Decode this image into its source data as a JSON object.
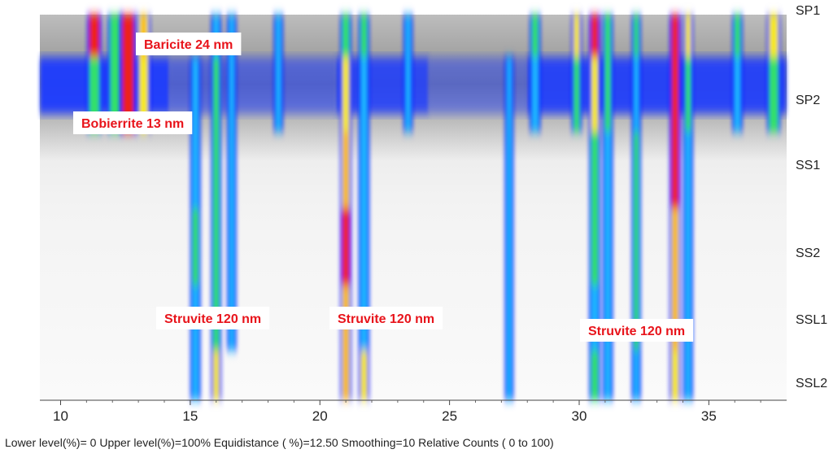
{
  "chart_data": {
    "type": "heatmap",
    "x_ticks": [
      10,
      15,
      20,
      25,
      30,
      35
    ],
    "xlim": [
      9.2,
      38
    ],
    "rows": [
      "SP1",
      "SP2",
      "SS1",
      "SS2",
      "SSL1",
      "SSL2"
    ],
    "annotations": [
      {
        "text": "Baricite 24 nm"
      },
      {
        "text": "Bobierrite 13 nm"
      },
      {
        "text": "Struvite 120 nm"
      },
      {
        "text": "Struvite 120 nm"
      },
      {
        "text": "Struvite 120 nm"
      }
    ],
    "footer": "Lower level(%)= 0  Upper level(%)=100%  Equidistance ( %)=12.50  Smoothing=10  Relative Counts ( 0 to 100)",
    "peaks": [
      {
        "x": 11.3,
        "w": 0.22,
        "rows": [
          0.9,
          0.5,
          0,
          0,
          0,
          0
        ]
      },
      {
        "x": 12.1,
        "w": 0.22,
        "rows": [
          0.6,
          0.6,
          0,
          0,
          0,
          0
        ]
      },
      {
        "x": 12.6,
        "w": 0.25,
        "rows": [
          1.0,
          1.0,
          0,
          0,
          0,
          0
        ]
      },
      {
        "x": 13.2,
        "w": 0.2,
        "rows": [
          0.8,
          0.7,
          0,
          0,
          0,
          0
        ]
      },
      {
        "x": 15.2,
        "w": 0.14,
        "rows": [
          0,
          0.3,
          0.3,
          0.5,
          0.45,
          0.45
        ]
      },
      {
        "x": 16.0,
        "w": 0.14,
        "rows": [
          0.3,
          0.55,
          0.6,
          0.65,
          0.65,
          0.7
        ]
      },
      {
        "x": 16.6,
        "w": 0.12,
        "rows": [
          0.3,
          0.35,
          0.3,
          0.4,
          0.35,
          0
        ]
      },
      {
        "x": 18.4,
        "w": 0.12,
        "rows": [
          0.4,
          0.3,
          0,
          0,
          0,
          0
        ]
      },
      {
        "x": 21.0,
        "w": 0.16,
        "rows": [
          0.5,
          0.7,
          0.85,
          0.9,
          0.85,
          0.8
        ]
      },
      {
        "x": 21.7,
        "w": 0.15,
        "rows": [
          0.6,
          0.4,
          0.4,
          0.45,
          0.45,
          0.7
        ]
      },
      {
        "x": 23.4,
        "w": 0.12,
        "rows": [
          0.3,
          0.4,
          0,
          0,
          0,
          0
        ]
      },
      {
        "x": 27.3,
        "w": 0.11,
        "rows": [
          0,
          0.3,
          0.35,
          0.35,
          0.3,
          0.3
        ]
      },
      {
        "x": 28.3,
        "w": 0.15,
        "rows": [
          0.5,
          0.3,
          0,
          0,
          0,
          0
        ]
      },
      {
        "x": 29.9,
        "w": 0.14,
        "rows": [
          0.7,
          0.6,
          0,
          0,
          0,
          0
        ]
      },
      {
        "x": 30.6,
        "w": 0.16,
        "rows": [
          0.9,
          0.75,
          0.5,
          0.5,
          0.45,
          0.5
        ]
      },
      {
        "x": 31.1,
        "w": 0.14,
        "rows": [
          0.6,
          0.5,
          0.35,
          0.35,
          0.35,
          0.4
        ]
      },
      {
        "x": 32.2,
        "w": 0.12,
        "rows": [
          0.5,
          0.4,
          0.55,
          0.55,
          0.5,
          0.45
        ]
      },
      {
        "x": 33.7,
        "w": 0.16,
        "rows": [
          0.95,
          0.9,
          0.9,
          0.85,
          0.8,
          0.75
        ]
      },
      {
        "x": 34.2,
        "w": 0.13,
        "rows": [
          0.7,
          0.5,
          0.4,
          0.45,
          0.45,
          0.45
        ]
      },
      {
        "x": 36.1,
        "w": 0.14,
        "rows": [
          0.5,
          0.4,
          0,
          0,
          0,
          0
        ]
      },
      {
        "x": 37.5,
        "w": 0.2,
        "rows": [
          0.75,
          0.55,
          0,
          0,
          0,
          0
        ]
      }
    ]
  }
}
